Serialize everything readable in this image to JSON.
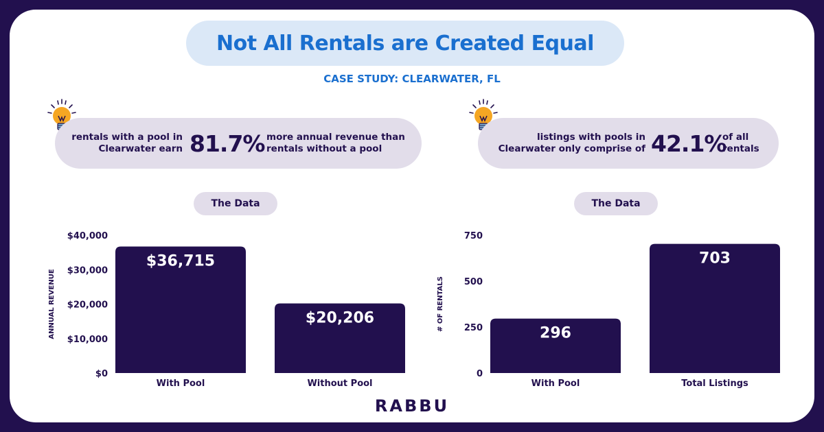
{
  "title": "Not All Rentals are Created Equal",
  "subtitle": "CASE STUDY: CLEARWATER, FL",
  "stats": [
    {
      "left": "rentals with a pool in Clearwater earn",
      "value": "81.7%",
      "right": "more annual revenue than rentals without a pool"
    },
    {
      "left": "listings with pools in Clearwater only comprise of",
      "value": "42.1%",
      "right": "of all rentals"
    }
  ],
  "data_labels": [
    "The Data",
    "The Data"
  ],
  "brand": "RABBU",
  "colors": {
    "bar": "#22104e",
    "accent": "#1a6fcf",
    "pill": "#e2ddea",
    "title_pill": "#dbe8f7",
    "bulb": "#f5a623"
  },
  "icons": [
    "lightbulb-icon",
    "lightbulb-icon"
  ],
  "chart_data": [
    {
      "type": "bar",
      "categories": [
        "With Pool",
        "Without Pool"
      ],
      "values": [
        36715,
        20206
      ],
      "value_labels": [
        "$36,715",
        "$20,206"
      ],
      "ylabel": "ANNUAL REVENUE",
      "yticks": [
        0,
        10000,
        20000,
        30000,
        40000
      ],
      "ytick_labels": [
        "$0",
        "$10,000",
        "$20,000",
        "$30,000",
        "$40,000"
      ],
      "ylim": [
        0,
        40000
      ],
      "grid": false
    },
    {
      "type": "bar",
      "categories": [
        "With Pool",
        "Total Listings"
      ],
      "values": [
        296,
        703
      ],
      "value_labels": [
        "296",
        "703"
      ],
      "ylabel": "# OF RENTALS",
      "yticks": [
        0,
        250,
        500,
        750
      ],
      "ytick_labels": [
        "0",
        "250",
        "500",
        "750"
      ],
      "ylim": [
        0,
        750
      ],
      "grid": false
    }
  ]
}
